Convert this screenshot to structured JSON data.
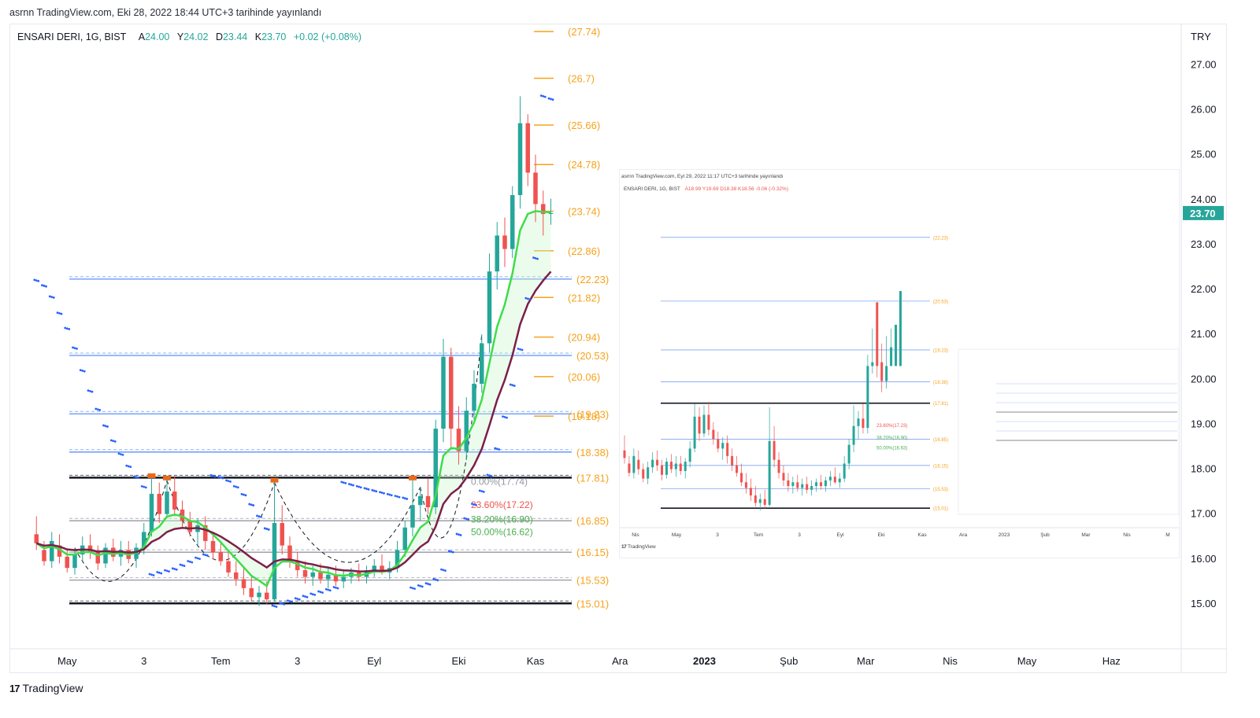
{
  "published_line": "asrnn TradingView.com, Eki 28, 2022 18:44 UTC+3 tarihinde yayınlandı",
  "symbol_line": "ENSARI DERI, 1G, BIST",
  "ohlc": [
    {
      "k": "A",
      "v": "24.00"
    },
    {
      "k": "Y",
      "v": "24.02"
    },
    {
      "k": "D",
      "v": "23.44"
    },
    {
      "k": "K",
      "v": "23.70"
    }
  ],
  "change": "+0.02 (+0.08%)",
  "brand_label": "TradingView",
  "colors": {
    "up": "#26a69a",
    "down": "#ef5350",
    "orange": "#f7a21b",
    "blue_line": "#5b8ff9",
    "green_ema": "#3fdc4c",
    "maroon_ema": "#7b1f4a",
    "psar": "#2962ff",
    "fib_green": "#4caf50",
    "fib_red": "#ef5350"
  },
  "chart_data": {
    "type": "candlestick",
    "currency": "TRY",
    "last_price": "23.70",
    "y_ticks": [
      "27.00",
      "26.00",
      "25.00",
      "24.00",
      "23.00",
      "22.00",
      "21.00",
      "20.00",
      "19.00",
      "18.00",
      "17.00",
      "16.00",
      "15.00"
    ],
    "ylim": [
      14.0,
      27.9
    ],
    "x_ticks": [
      {
        "label": "Nis",
        "i": -3
      },
      {
        "label": "May",
        "i": 7
      },
      {
        "label": "3",
        "i": 17
      },
      {
        "label": "Tem",
        "i": 27
      },
      {
        "label": "3",
        "i": 37
      },
      {
        "label": "Eyl",
        "i": 47
      },
      {
        "label": "Eki",
        "i": 58
      },
      {
        "label": "Kas",
        "i": 68
      },
      {
        "label": "Ara",
        "i": 79
      },
      {
        "label": "2023",
        "i": 90,
        "bold": true
      },
      {
        "label": "Şub",
        "i": 101
      },
      {
        "label": "Mar",
        "i": 111
      },
      {
        "label": "Nis",
        "i": 122
      },
      {
        "label": "May",
        "i": 132
      },
      {
        "label": "Haz",
        "i": 143
      }
    ],
    "candles": [
      {
        "o": 16.55,
        "h": 16.95,
        "l": 16.2,
        "c": 16.35
      },
      {
        "o": 16.2,
        "h": 16.4,
        "l": 15.85,
        "c": 15.95
      },
      {
        "o": 15.95,
        "h": 16.6,
        "l": 15.8,
        "c": 16.4
      },
      {
        "o": 16.3,
        "h": 16.55,
        "l": 15.9,
        "c": 16.05
      },
      {
        "o": 16.05,
        "h": 16.2,
        "l": 15.7,
        "c": 15.8
      },
      {
        "o": 15.8,
        "h": 16.25,
        "l": 15.65,
        "c": 16.1
      },
      {
        "o": 16.1,
        "h": 16.5,
        "l": 15.95,
        "c": 16.3
      },
      {
        "o": 16.3,
        "h": 16.55,
        "l": 16.0,
        "c": 16.15
      },
      {
        "o": 16.15,
        "h": 16.3,
        "l": 15.75,
        "c": 15.9
      },
      {
        "o": 15.9,
        "h": 16.35,
        "l": 15.8,
        "c": 16.25
      },
      {
        "o": 16.25,
        "h": 16.45,
        "l": 15.95,
        "c": 16.05
      },
      {
        "o": 16.05,
        "h": 16.4,
        "l": 15.85,
        "c": 16.2
      },
      {
        "o": 16.2,
        "h": 16.4,
        "l": 15.9,
        "c": 16.0
      },
      {
        "o": 16.0,
        "h": 16.35,
        "l": 15.8,
        "c": 16.25
      },
      {
        "o": 16.25,
        "h": 16.8,
        "l": 16.1,
        "c": 16.6
      },
      {
        "o": 16.6,
        "h": 17.8,
        "l": 16.5,
        "c": 17.45
      },
      {
        "o": 17.45,
        "h": 17.7,
        "l": 16.8,
        "c": 17.0
      },
      {
        "o": 17.0,
        "h": 17.75,
        "l": 16.9,
        "c": 17.5
      },
      {
        "o": 17.5,
        "h": 17.85,
        "l": 16.95,
        "c": 17.1
      },
      {
        "o": 17.1,
        "h": 17.3,
        "l": 16.7,
        "c": 16.85
      },
      {
        "o": 16.85,
        "h": 17.05,
        "l": 16.5,
        "c": 16.6
      },
      {
        "o": 16.6,
        "h": 16.9,
        "l": 16.3,
        "c": 16.75
      },
      {
        "o": 16.75,
        "h": 16.95,
        "l": 16.2,
        "c": 16.4
      },
      {
        "o": 16.4,
        "h": 16.6,
        "l": 16.0,
        "c": 16.15
      },
      {
        "o": 16.15,
        "h": 16.4,
        "l": 15.85,
        "c": 15.95
      },
      {
        "o": 15.95,
        "h": 16.2,
        "l": 15.6,
        "c": 15.7
      },
      {
        "o": 15.7,
        "h": 15.95,
        "l": 15.4,
        "c": 15.55
      },
      {
        "o": 15.55,
        "h": 15.8,
        "l": 15.2,
        "c": 15.35
      },
      {
        "o": 15.35,
        "h": 15.6,
        "l": 15.05,
        "c": 15.15
      },
      {
        "o": 15.15,
        "h": 15.4,
        "l": 14.95,
        "c": 15.25
      },
      {
        "o": 15.25,
        "h": 15.5,
        "l": 15.0,
        "c": 15.1
      },
      {
        "o": 15.1,
        "h": 17.7,
        "l": 15.05,
        "c": 16.8
      },
      {
        "o": 16.8,
        "h": 17.2,
        "l": 16.1,
        "c": 16.3
      },
      {
        "o": 16.3,
        "h": 16.5,
        "l": 15.8,
        "c": 15.95
      },
      {
        "o": 15.95,
        "h": 16.15,
        "l": 15.6,
        "c": 15.75
      },
      {
        "o": 15.75,
        "h": 15.95,
        "l": 15.45,
        "c": 15.6
      },
      {
        "o": 15.6,
        "h": 15.85,
        "l": 15.4,
        "c": 15.7
      },
      {
        "o": 15.7,
        "h": 15.9,
        "l": 15.45,
        "c": 15.55
      },
      {
        "o": 15.55,
        "h": 15.8,
        "l": 15.35,
        "c": 15.65
      },
      {
        "o": 15.65,
        "h": 15.85,
        "l": 15.4,
        "c": 15.5
      },
      {
        "o": 15.5,
        "h": 15.75,
        "l": 15.35,
        "c": 15.6
      },
      {
        "o": 15.6,
        "h": 15.8,
        "l": 15.45,
        "c": 15.7
      },
      {
        "o": 15.7,
        "h": 15.9,
        "l": 15.5,
        "c": 15.6
      },
      {
        "o": 15.6,
        "h": 15.85,
        "l": 15.45,
        "c": 15.75
      },
      {
        "o": 15.75,
        "h": 16.0,
        "l": 15.6,
        "c": 15.85
      },
      {
        "o": 15.85,
        "h": 16.1,
        "l": 15.65,
        "c": 15.7
      },
      {
        "o": 15.7,
        "h": 15.95,
        "l": 15.55,
        "c": 15.8
      },
      {
        "o": 15.8,
        "h": 16.4,
        "l": 15.7,
        "c": 16.2
      },
      {
        "o": 16.2,
        "h": 16.85,
        "l": 16.05,
        "c": 16.7
      },
      {
        "o": 16.7,
        "h": 17.75,
        "l": 16.5,
        "c": 17.2
      },
      {
        "o": 17.2,
        "h": 17.6,
        "l": 16.85,
        "c": 17.4
      },
      {
        "o": 17.4,
        "h": 17.8,
        "l": 17.0,
        "c": 17.15
      },
      {
        "o": 17.15,
        "h": 19.1,
        "l": 17.0,
        "c": 18.9
      },
      {
        "o": 18.9,
        "h": 20.9,
        "l": 18.6,
        "c": 20.5
      },
      {
        "o": 20.5,
        "h": 20.7,
        "l": 18.5,
        "c": 18.9
      },
      {
        "o": 18.9,
        "h": 19.4,
        "l": 18.1,
        "c": 18.4
      },
      {
        "o": 18.4,
        "h": 19.6,
        "l": 18.2,
        "c": 19.3
      },
      {
        "o": 19.3,
        "h": 20.2,
        "l": 19.0,
        "c": 19.9
      },
      {
        "o": 19.9,
        "h": 21.0,
        "l": 19.7,
        "c": 20.8
      },
      {
        "o": 20.8,
        "h": 22.8,
        "l": 20.6,
        "c": 22.4
      },
      {
        "o": 22.4,
        "h": 23.5,
        "l": 22.0,
        "c": 23.2
      },
      {
        "o": 23.2,
        "h": 23.6,
        "l": 22.5,
        "c": 22.9
      },
      {
        "o": 22.9,
        "h": 24.3,
        "l": 22.7,
        "c": 24.1
      },
      {
        "o": 24.1,
        "h": 26.3,
        "l": 23.8,
        "c": 25.7
      },
      {
        "o": 25.7,
        "h": 25.9,
        "l": 24.3,
        "c": 24.6
      },
      {
        "o": 24.6,
        "h": 25.0,
        "l": 23.5,
        "c": 23.9
      },
      {
        "o": 23.9,
        "h": 24.2,
        "l": 23.2,
        "c": 23.68
      },
      {
        "o": 23.68,
        "h": 24.02,
        "l": 23.44,
        "c": 23.7
      }
    ],
    "h_levels": [
      {
        "v": 22.23,
        "label": "(22.23)",
        "color": "#5b8ff9"
      },
      {
        "v": 20.53,
        "label": "(20.53)",
        "color": "#5b8ff9"
      },
      {
        "v": 19.23,
        "label": "(19.23)",
        "color": "#5b8ff9"
      },
      {
        "v": 18.38,
        "label": "(18.38)",
        "color": "#5b8ff9"
      },
      {
        "v": 17.81,
        "label": "(17.81)",
        "color": "#131722",
        "thick": true
      },
      {
        "v": 16.85,
        "label": "(16.85)",
        "color": "#9598a1"
      },
      {
        "v": 16.15,
        "label": "(16.15)",
        "color": "#9598a1"
      },
      {
        "v": 15.53,
        "label": "(15.53)",
        "color": "#9598a1"
      },
      {
        "v": 15.01,
        "label": "(15.01)",
        "color": "#131722",
        "thick": true
      }
    ],
    "target_levels": [
      {
        "v": 27.74,
        "label": "(27.74)"
      },
      {
        "v": 26.7,
        "label": "(26.7)"
      },
      {
        "v": 25.66,
        "label": "(25.66)"
      },
      {
        "v": 24.78,
        "label": "(24.78)"
      },
      {
        "v": 23.74,
        "label": "(23.74)"
      },
      {
        "v": 22.86,
        "label": "(22.86)"
      },
      {
        "v": 21.82,
        "label": "(21.82)"
      },
      {
        "v": 20.94,
        "label": "(20.94)"
      },
      {
        "v": 20.06,
        "label": "(20.06)"
      },
      {
        "v": 19.18,
        "label": "(19.18)"
      }
    ],
    "fib_labels": [
      {
        "v": 17.22,
        "label": "23.60%(17.22)",
        "color": "#ef5350"
      },
      {
        "v": 16.9,
        "label": "38.20%(16.90)",
        "color": "#4caf50"
      },
      {
        "v": 16.62,
        "label": "50.00%(16.62)",
        "color": "#4caf50"
      },
      {
        "v": 17.74,
        "label": "0.00%(17.74)",
        "color": "#9598a1"
      }
    ]
  },
  "inset_1": {
    "published_line": "asrnn TradingView.com, Eyl 29, 2022 11:17 UTC+3 tarihinde yayınlandı",
    "symbol_line": "ENSARI DERI, 1G, BIST",
    "ohlc_text": "A18.99  Y19.69  D18.38  K18.56  -0.06 (-0.32%)",
    "levels": [
      "(22.23)",
      "(20.53)",
      "(19.23)",
      "(18.38)",
      "(17.81)",
      "(16.85)",
      "(16.15)",
      "(15.53)",
      "(15.01)"
    ],
    "fib": [
      "23.60%(17.23)",
      "38.20%(16.90)",
      "50.00%(16.63)"
    ],
    "x_ticks": [
      "Nis",
      "May",
      "3",
      "Tem",
      "3",
      "Eyl",
      "Eki",
      "Kas",
      "Ara",
      "2023",
      "Şub",
      "Mar",
      "Nis",
      "M"
    ],
    "brand": "TradingView"
  }
}
